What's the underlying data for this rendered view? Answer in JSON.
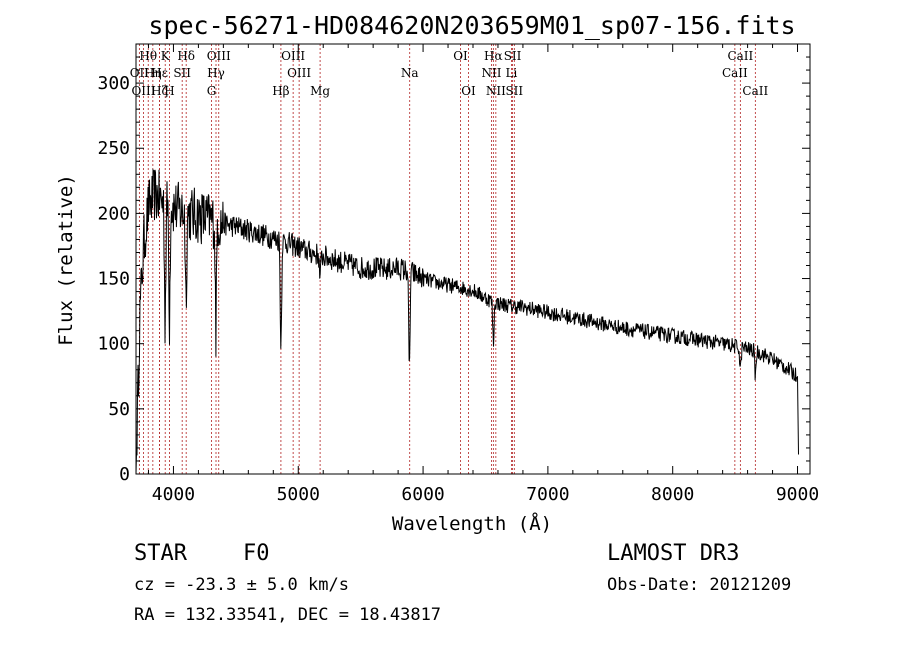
{
  "chart_data": {
    "type": "line",
    "title": "spec-56271-HD084620N203659M01_sp07-156.fits",
    "xlabel": "Wavelength (Å)",
    "ylabel": "Flux (relative)",
    "xlim": [
      3700,
      9100
    ],
    "ylim": [
      0,
      330
    ],
    "xticks": [
      4000,
      5000,
      6000,
      7000,
      8000,
      9000
    ],
    "yticks": [
      0,
      50,
      100,
      150,
      200,
      250,
      300
    ],
    "spectrum_anchors": {
      "x": [
        3700,
        3730,
        3760,
        3800,
        3850,
        3900,
        3950,
        4000,
        4100,
        4200,
        4300,
        4400,
        4500,
        4600,
        4700,
        4800,
        4900,
        5000,
        5100,
        5200,
        5300,
        5400,
        5500,
        5600,
        5700,
        5800,
        5900,
        6000,
        6100,
        6200,
        6300,
        6400,
        6500,
        6600,
        6700,
        6800,
        6900,
        7000,
        7200,
        7400,
        7600,
        7800,
        8000,
        8200,
        8400,
        8600,
        8700,
        8800,
        8900,
        9000,
        9010
      ],
      "y": [
        0,
        120,
        175,
        205,
        215,
        210,
        205,
        205,
        200,
        198,
        195,
        192,
        190,
        187,
        184,
        181,
        178,
        174,
        170,
        167,
        164,
        161,
        158,
        158,
        157,
        158,
        155,
        150,
        147,
        145,
        143,
        141,
        135,
        131,
        129,
        128,
        126,
        124,
        120,
        116,
        112,
        109,
        106,
        103,
        100,
        96,
        93,
        88,
        82,
        75,
        0
      ]
    },
    "absorption_features": [
      {
        "x": 3933,
        "depth": 95
      },
      {
        "x": 3968,
        "depth": 90
      },
      {
        "x": 4101,
        "depth": 70
      },
      {
        "x": 4340,
        "depth": 85
      },
      {
        "x": 4861,
        "depth": 90
      },
      {
        "x": 5175,
        "depth": 20
      },
      {
        "x": 5890,
        "depth": 85
      },
      {
        "x": 6563,
        "depth": 35
      },
      {
        "x": 8542,
        "depth": 20
      },
      {
        "x": 8662,
        "depth": 20
      }
    ],
    "spectral_lines": [
      {
        "label": "Hθ",
        "x": 3798,
        "row": 0
      },
      {
        "label": "K",
        "x": 3934,
        "row": 0
      },
      {
        "label": "Hδ",
        "x": 4102,
        "row": 0
      },
      {
        "label": "OIII",
        "x": 4363,
        "row": 0
      },
      {
        "label": "OIII",
        "x": 4959,
        "row": 0
      },
      {
        "label": "OI",
        "x": 6300,
        "row": 0
      },
      {
        "label": "Hα",
        "x": 6563,
        "row": 0
      },
      {
        "label": "SII",
        "x": 6717,
        "row": 0
      },
      {
        "label": "CaII",
        "x": 8542,
        "row": 0
      },
      {
        "label": "OII",
        "x": 3727,
        "row": 1
      },
      {
        "label": "Hη",
        "x": 3835,
        "row": 1
      },
      {
        "label": "Hε",
        "x": 3889,
        "row": 1
      },
      {
        "label": "SII",
        "x": 4070,
        "row": 1
      },
      {
        "label": "Hγ",
        "x": 4341,
        "row": 1
      },
      {
        "label": "OIII",
        "x": 5007,
        "row": 1
      },
      {
        "label": "Na",
        "x": 5893,
        "row": 1
      },
      {
        "label": "NII",
        "x": 6548,
        "row": 1
      },
      {
        "label": "Li",
        "x": 6708,
        "row": 1
      },
      {
        "label": "CaII",
        "x": 8498,
        "row": 1
      },
      {
        "label": "OIII",
        "x": 3760,
        "row": 2
      },
      {
        "label": "Hζ",
        "x": 3889,
        "row": 2
      },
      {
        "label": "H",
        "x": 3968,
        "row": 2
      },
      {
        "label": "G",
        "x": 4305,
        "row": 2
      },
      {
        "label": "Hβ",
        "x": 4861,
        "row": 2
      },
      {
        "label": "Mg",
        "x": 5175,
        "row": 2
      },
      {
        "label": "OI",
        "x": 6364,
        "row": 2
      },
      {
        "label": "NII",
        "x": 6583,
        "row": 2
      },
      {
        "label": "SII",
        "x": 6731,
        "row": 2
      },
      {
        "label": "CaII",
        "x": 8662,
        "row": 2
      }
    ]
  },
  "info": {
    "object_class": "STAR",
    "subclass": "F0",
    "survey": "LAMOST DR3",
    "cz": "cz = -23.3 ± 5.0 km/s",
    "obs_date": "Obs-Date: 20121209",
    "coords": "RA = 132.33541, DEC =  18.43817"
  }
}
